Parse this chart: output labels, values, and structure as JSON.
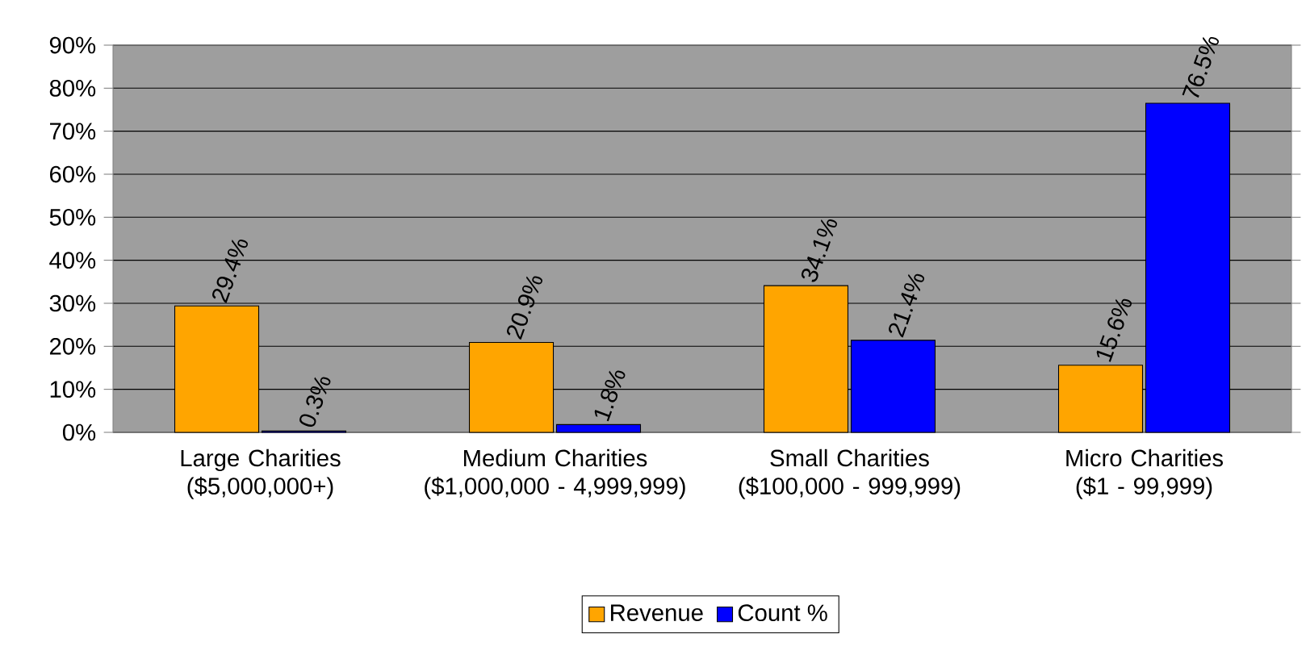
{
  "chart_data": {
    "type": "bar",
    "categories": [
      "Large Charities ($5,000,000+)",
      "Medium Charities ($1,000,000 - 4,999,999)",
      "Small Charities ($100,000 - 999,999)",
      "Micro Charities ($1 - 99,999)"
    ],
    "series": [
      {
        "name": "Revenue",
        "color": "#ffa500",
        "values": [
          29.4,
          20.9,
          34.1,
          15.6
        ],
        "value_labels": [
          "29.4%",
          "20.9%",
          "34.1%",
          "15.6%"
        ]
      },
      {
        "name": "Count %",
        "color": "#0000ff",
        "values": [
          0.3,
          1.8,
          21.4,
          76.5
        ],
        "value_labels": [
          "0.3%",
          "1.8%",
          "21.4%",
          "76.5%"
        ]
      }
    ],
    "ylim": [
      0,
      90
    ],
    "yticks": [
      {
        "value": 0,
        "label": "0%"
      },
      {
        "value": 10,
        "label": "10%"
      },
      {
        "value": 20,
        "label": "20%"
      },
      {
        "value": 30,
        "label": "30%"
      },
      {
        "value": 40,
        "label": "40%"
      },
      {
        "value": 50,
        "label": "50%"
      },
      {
        "value": 60,
        "label": "60%"
      },
      {
        "value": 70,
        "label": "70%"
      },
      {
        "value": 80,
        "label": "80%"
      },
      {
        "value": 90,
        "label": "90%"
      }
    ],
    "grid": "y",
    "legend": "bottom"
  }
}
